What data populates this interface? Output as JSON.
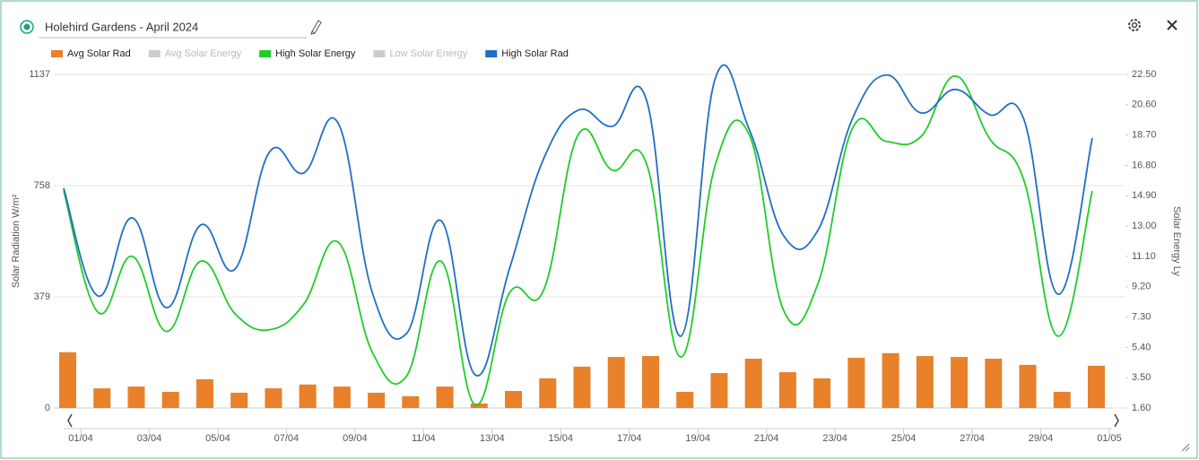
{
  "header": {
    "title": "Holehird Gardens - April 2024"
  },
  "chart_data": {
    "type": "bar-line",
    "y_label": "Solar Radiation W/m²",
    "y2_label": "Solar Energy Ly",
    "categories": [
      "01/04",
      null,
      "03/04",
      null,
      "05/04",
      null,
      "07/04",
      null,
      "09/04",
      null,
      "11/04",
      null,
      "13/04",
      null,
      "15/04",
      null,
      "17/04",
      null,
      "19/04",
      null,
      "21/04",
      null,
      "23/04",
      null,
      "25/04",
      null,
      "27/04",
      null,
      "29/04",
      null,
      "01/05"
    ],
    "ylim": [
      0,
      1137
    ],
    "yticks": [
      0,
      379,
      758,
      1137
    ],
    "y2lim": [
      1.6,
      22.5
    ],
    "y2ticks": [
      {
        "value": 1.6,
        "label": "1.60"
      },
      {
        "value": 3.5,
        "label": "3.50"
      },
      {
        "value": 5.4,
        "label": "5.40"
      },
      {
        "value": 7.3,
        "label": "7.30"
      },
      {
        "value": 9.2,
        "label": "9.20"
      },
      {
        "value": 11.1,
        "label": "11.10"
      },
      {
        "value": 13,
        "label": "13.00"
      },
      {
        "value": 14.9,
        "label": "14.90"
      },
      {
        "value": 16.8,
        "label": "16.80"
      },
      {
        "value": 18.7,
        "label": "18.70"
      },
      {
        "value": 20.6,
        "label": "20.60"
      },
      {
        "value": 22.5,
        "label": "22.50"
      }
    ],
    "grid": true,
    "series": [
      {
        "name": "Avg Solar Rad",
        "color": "#e8812a",
        "kind": "bar",
        "visible": true,
        "values": [
          190,
          67,
          73,
          55,
          98,
          52,
          67,
          80,
          73,
          52,
          40,
          73,
          15,
          58,
          101,
          141,
          174,
          177,
          55,
          119,
          168,
          122,
          101,
          171,
          187,
          177,
          174,
          168,
          147,
          55,
          144
        ]
      },
      {
        "name": "Avg Solar Energy",
        "color": "#cccccc",
        "kind": "line",
        "visible": false
      },
      {
        "name": "High Solar Energy",
        "color": "#1fcc2a",
        "kind": "line",
        "axis": "y2",
        "visible": true,
        "values": [
          15.2,
          7.6,
          11.1,
          6.4,
          10.8,
          7.5,
          6.5,
          8.1,
          12.0,
          5.1,
          3.6,
          10.8,
          1.8,
          8.8,
          9.0,
          18.7,
          16.5,
          16.9,
          4.8,
          16.8,
          18.7,
          7.7,
          9.4,
          19.1,
          18.3,
          18.6,
          22.4,
          18.5,
          15.9,
          6.1,
          15.2
        ]
      },
      {
        "name": "Low Solar Energy",
        "color": "#cccccc",
        "kind": "line",
        "visible": false
      },
      {
        "name": "High Solar Rad",
        "color": "#1f6fc4",
        "kind": "line",
        "visible": true,
        "values": [
          749,
          382,
          648,
          342,
          624,
          474,
          872,
          801,
          972,
          394,
          254,
          639,
          113,
          474,
          850,
          1015,
          960,
          1049,
          245,
          1122,
          948,
          587,
          606,
          985,
          1135,
          1006,
          1086,
          1000,
          985,
          388,
          920
        ]
      }
    ]
  }
}
